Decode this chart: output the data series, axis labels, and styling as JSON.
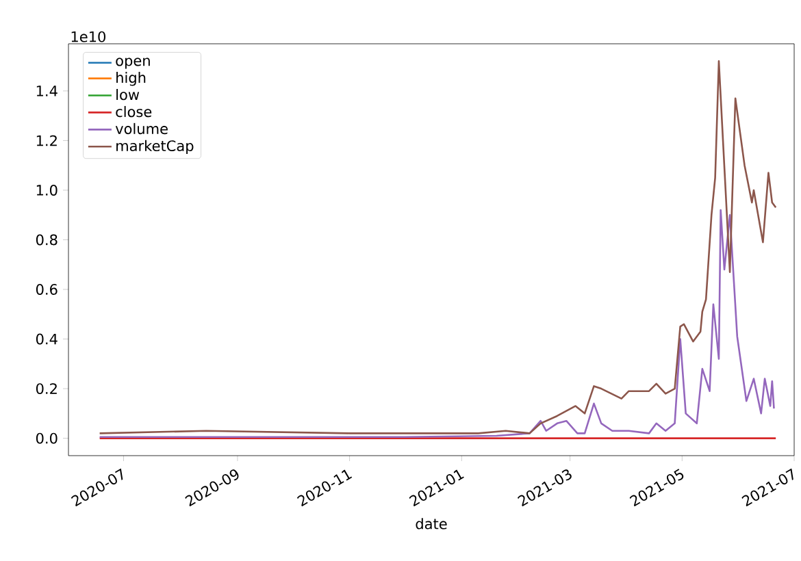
{
  "chart_data": {
    "type": "line",
    "xlabel": "date",
    "annotations": [
      "1e10"
    ],
    "legend": "top left",
    "grid": false,
    "marker": "none",
    "line_style": "solid",
    "xlim": [
      "2020-06-01",
      "2021-07-01"
    ],
    "xticks": [
      "2020-07",
      "2020-09",
      "2020-11",
      "2021-01",
      "2021-03",
      "2021-05",
      "2021-07"
    ],
    "ylim": [
      -0.07,
      1.59
    ],
    "yticks": [
      {
        "value": 0,
        "label": "0.0"
      },
      {
        "value": 0.2,
        "label": "0.2"
      },
      {
        "value": 0.4,
        "label": "0.4"
      },
      {
        "value": 0.6,
        "label": "0.6"
      },
      {
        "value": 0.8,
        "label": "0.8"
      },
      {
        "value": 1.0,
        "label": "1.0"
      },
      {
        "value": 1.2,
        "label": "1.2"
      },
      {
        "value": 1.4,
        "label": "1.4"
      }
    ],
    "series": [
      {
        "name": "open",
        "color": "#1f77b4"
      },
      {
        "name": "high",
        "color": "#ff7f0e"
      },
      {
        "name": "low",
        "color": "#2ca02c"
      },
      {
        "name": "close",
        "color": "#d62728",
        "x": [
          "2020-06-18",
          "2021-06-21"
        ],
        "values": [
          0,
          0
        ]
      },
      {
        "name": "volume",
        "color": "#9467bd",
        "x": [
          "2020-06-18",
          "2020-09-01",
          "2020-12-01",
          "2021-01-20",
          "2021-02-07",
          "2021-02-13",
          "2021-02-16",
          "2021-02-22",
          "2021-02-27",
          "2021-03-05",
          "2021-03-09",
          "2021-03-14",
          "2021-03-18",
          "2021-03-24",
          "2021-04-02",
          "2021-04-13",
          "2021-04-17",
          "2021-04-22",
          "2021-04-27",
          "2021-04-30",
          "2021-05-03",
          "2021-05-09",
          "2021-05-12",
          "2021-05-16",
          "2021-05-18",
          "2021-05-21",
          "2021-05-22",
          "2021-05-24",
          "2021-05-27",
          "2021-05-31",
          "2021-06-05",
          "2021-06-09",
          "2021-06-13",
          "2021-06-15",
          "2021-06-18",
          "2021-06-19",
          "2021-06-20"
        ],
        "values": [
          0.005,
          0.005,
          0.005,
          0.01,
          0.02,
          0.07,
          0.03,
          0.06,
          0.07,
          0.02,
          0.02,
          0.14,
          0.06,
          0.03,
          0.03,
          0.02,
          0.06,
          0.03,
          0.06,
          0.4,
          0.1,
          0.06,
          0.28,
          0.19,
          0.54,
          0.32,
          0.92,
          0.68,
          0.9,
          0.41,
          0.15,
          0.24,
          0.1,
          0.24,
          0.13,
          0.23,
          0.12
        ]
      },
      {
        "name": "marketCap",
        "color": "#8c564b",
        "x": [
          "2020-06-18",
          "2020-08-15",
          "2020-11-01",
          "2021-01-10",
          "2021-01-25",
          "2021-02-07",
          "2021-02-13",
          "2021-02-22",
          "2021-03-04",
          "2021-03-09",
          "2021-03-14",
          "2021-03-18",
          "2021-03-29",
          "2021-04-02",
          "2021-04-13",
          "2021-04-17",
          "2021-04-22",
          "2021-04-27",
          "2021-04-30",
          "2021-05-02",
          "2021-05-07",
          "2021-05-11",
          "2021-05-12",
          "2021-05-14",
          "2021-05-17",
          "2021-05-19",
          "2021-05-21",
          "2021-05-27",
          "2021-05-30",
          "2021-06-04",
          "2021-06-08",
          "2021-06-09",
          "2021-06-14",
          "2021-06-17",
          "2021-06-19",
          "2021-06-21"
        ],
        "values": [
          0.02,
          0.03,
          0.02,
          0.02,
          0.03,
          0.02,
          0.06,
          0.09,
          0.13,
          0.1,
          0.21,
          0.2,
          0.16,
          0.19,
          0.19,
          0.22,
          0.18,
          0.2,
          0.45,
          0.46,
          0.39,
          0.43,
          0.51,
          0.56,
          0.9,
          1.05,
          1.52,
          0.67,
          1.37,
          1.1,
          0.95,
          1.0,
          0.79,
          1.07,
          0.95,
          0.93
        ]
      }
    ]
  }
}
